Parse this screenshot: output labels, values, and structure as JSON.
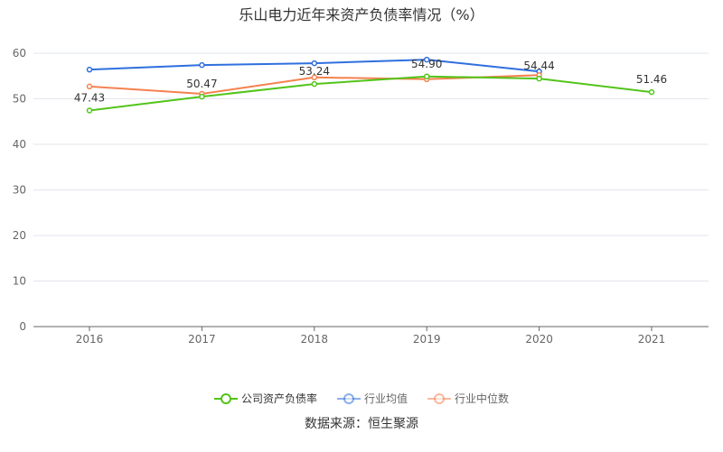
{
  "chart_data": {
    "type": "line",
    "title": "乐山电力近年来资产负债率情况（%）",
    "categories": [
      "2016",
      "2017",
      "2018",
      "2019",
      "2020",
      "2021"
    ],
    "ylim": [
      0,
      60
    ],
    "yticks": [
      0,
      10,
      20,
      30,
      40,
      50,
      60
    ],
    "grid": true,
    "legend_position": "bottom",
    "series": [
      {
        "name": "公司资产负债率",
        "color": "#52c41a",
        "values": [
          47.43,
          50.47,
          53.24,
          54.9,
          54.44,
          51.46
        ],
        "labels": [
          "47.43",
          "50.47",
          "53.24",
          "54.90",
          "54.44",
          "51.46"
        ]
      },
      {
        "name": "行业均值",
        "color": "#2f6fde",
        "values": [
          56.4,
          57.4,
          57.8,
          58.6,
          56.0,
          null
        ]
      },
      {
        "name": "行业中位数",
        "color": "#f5814f",
        "values": [
          52.7,
          51.1,
          54.7,
          54.3,
          55.2,
          null
        ]
      }
    ]
  },
  "source": "数据来源：恒生聚源"
}
